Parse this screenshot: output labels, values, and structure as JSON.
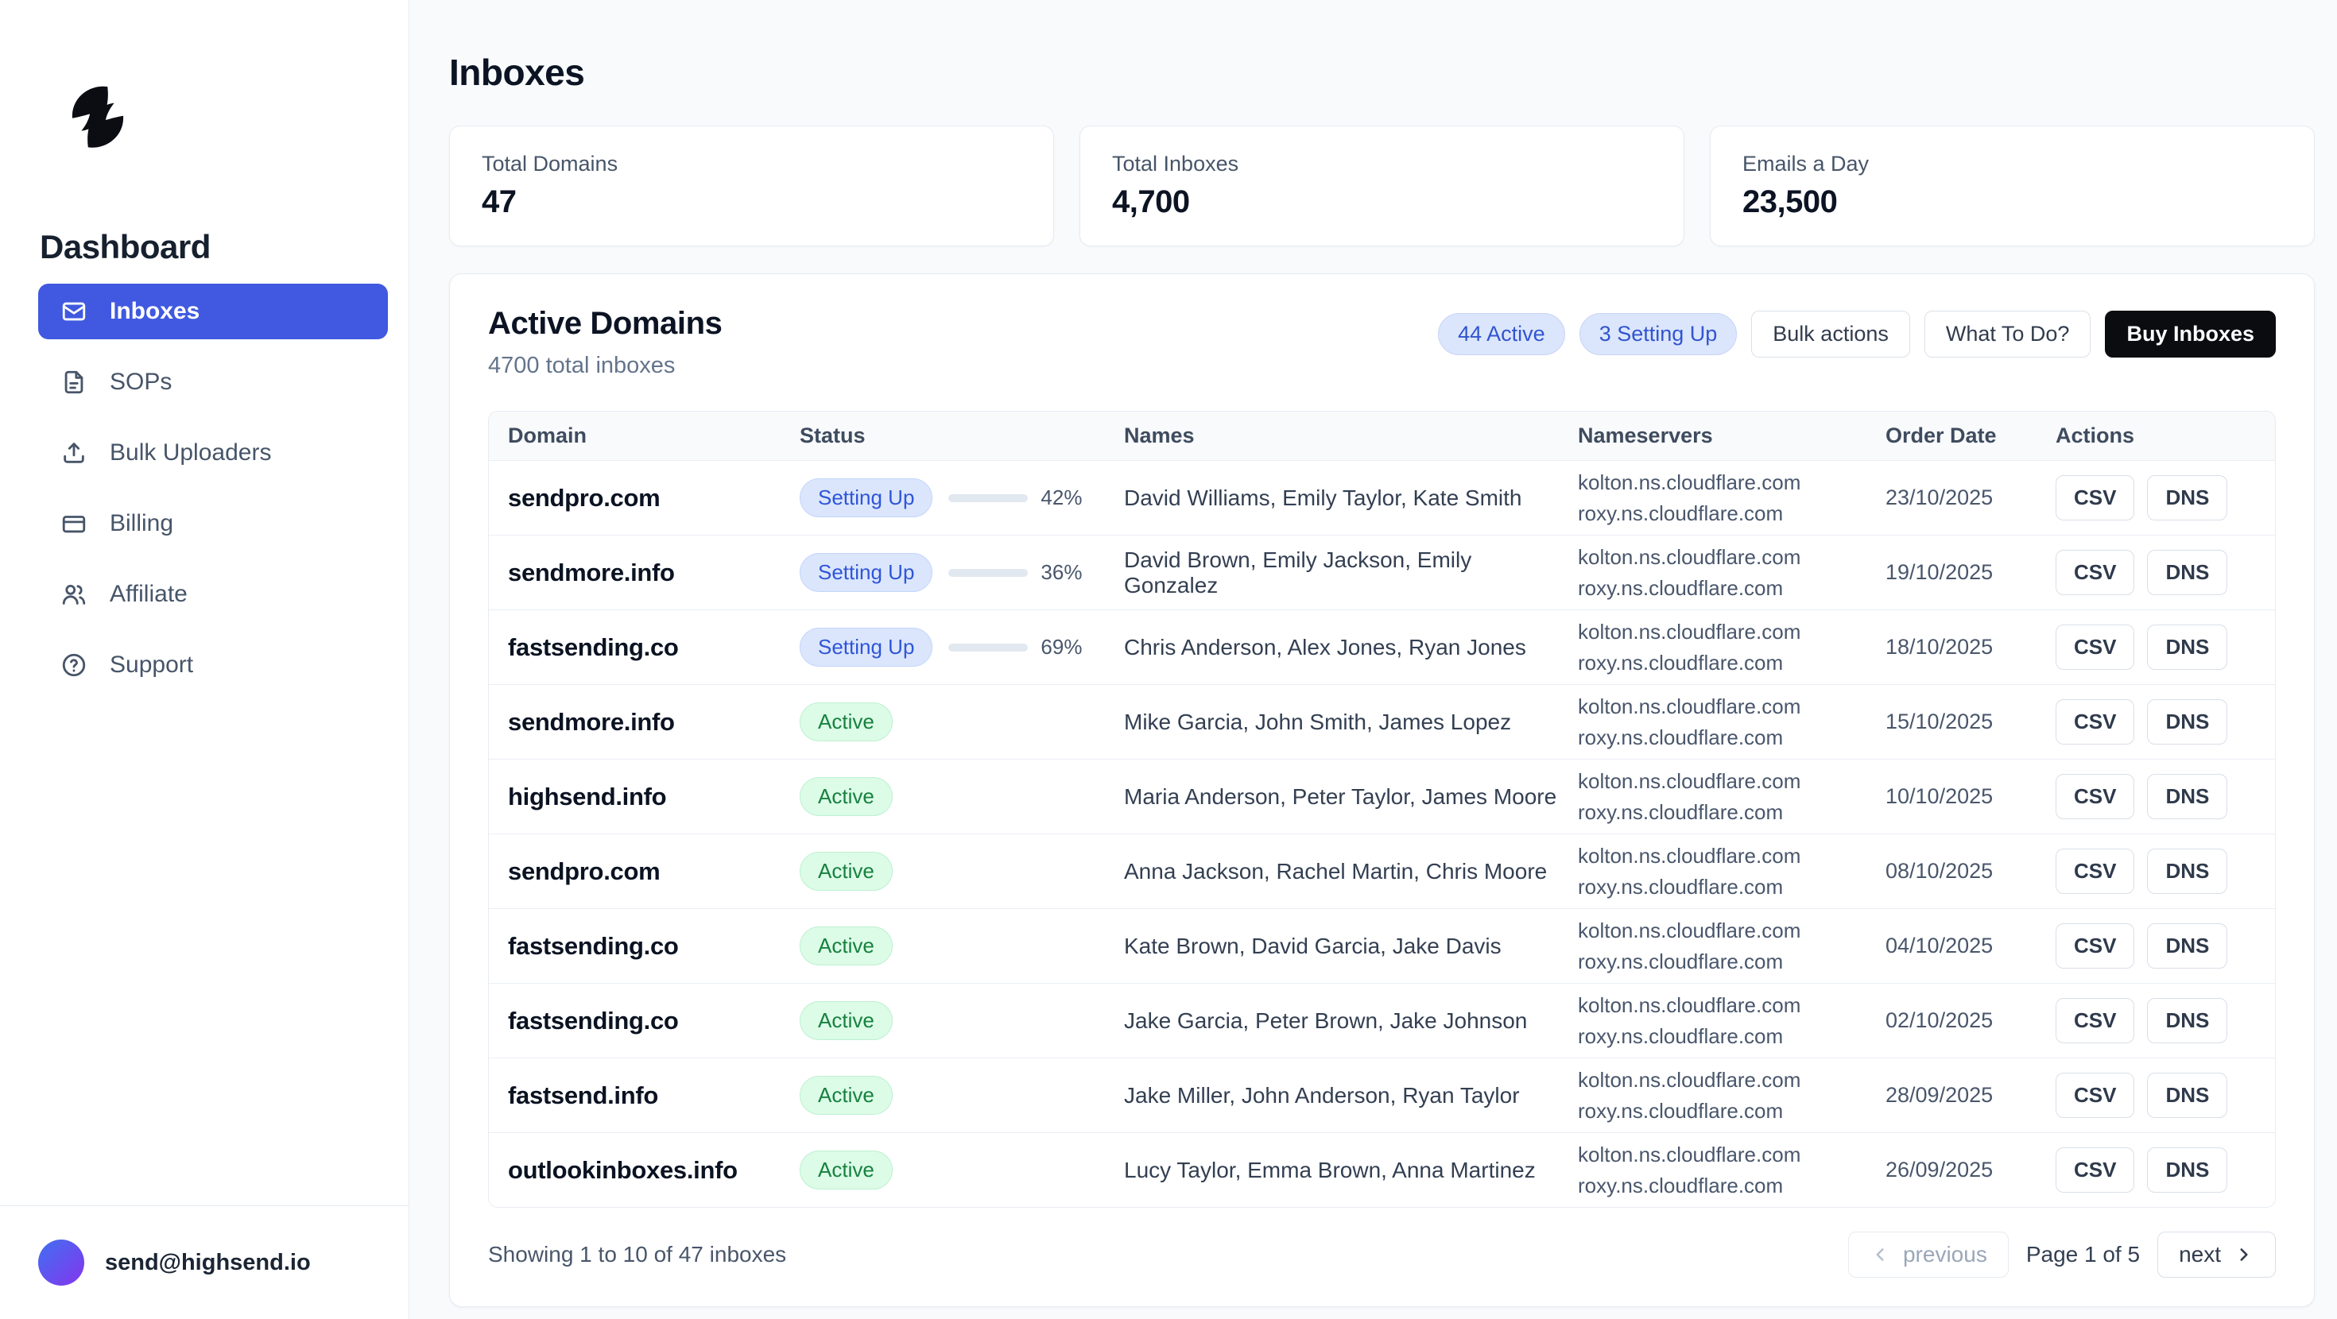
{
  "colors": {
    "accent": "#4059e0",
    "badge_blue_bg": "#dbe6fc",
    "badge_blue_text": "#3254cf",
    "badge_green_bg": "#dcfce7",
    "badge_green_text": "#17813f",
    "dark_button": "#0a0c10"
  },
  "sidebar": {
    "brand": "Dashboard",
    "items": [
      {
        "label": "Inboxes",
        "icon": "mail-icon",
        "active": true
      },
      {
        "label": "SOPs",
        "icon": "file-icon",
        "active": false
      },
      {
        "label": "Bulk Uploaders",
        "icon": "upload-icon",
        "active": false
      },
      {
        "label": "Billing",
        "icon": "credit-card-icon",
        "active": false
      },
      {
        "label": "Affiliate",
        "icon": "users-icon",
        "active": false
      },
      {
        "label": "Support",
        "icon": "help-circle-icon",
        "active": false
      }
    ],
    "user_email": "send@highsend.io"
  },
  "header": {
    "title": "Inboxes"
  },
  "stats": [
    {
      "label": "Total Domains",
      "value": "47"
    },
    {
      "label": "Total Inboxes",
      "value": "4,700"
    },
    {
      "label": "Emails a Day",
      "value": "23,500"
    }
  ],
  "panel": {
    "title": "Active Domains",
    "subtitle": "4700 total inboxes",
    "badges": [
      {
        "label": "44 Active"
      },
      {
        "label": "3 Setting Up"
      }
    ],
    "buttons": {
      "bulk_actions": "Bulk actions",
      "what_to_do": "What To Do?",
      "buy_inboxes": "Buy Inboxes"
    },
    "table": {
      "columns": [
        "Domain",
        "Status",
        "Names",
        "Nameservers",
        "Order Date",
        "Actions"
      ],
      "action_labels": [
        "CSV",
        "DNS"
      ],
      "rows": [
        {
          "domain": "sendpro.com",
          "status": "Setting Up",
          "progress": 42,
          "names": "David Williams, Emily Taylor, Kate Smith",
          "ns": [
            "kolton.ns.cloudflare.com",
            "roxy.ns.cloudflare.com"
          ],
          "date": "23/10/2025"
        },
        {
          "domain": "sendmore.info",
          "status": "Setting Up",
          "progress": 36,
          "names": "David Brown, Emily Jackson, Emily Gonzalez",
          "ns": [
            "kolton.ns.cloudflare.com",
            "roxy.ns.cloudflare.com"
          ],
          "date": "19/10/2025"
        },
        {
          "domain": "fastsending.co",
          "status": "Setting Up",
          "progress": 69,
          "names": "Chris Anderson, Alex Jones, Ryan Jones",
          "ns": [
            "kolton.ns.cloudflare.com",
            "roxy.ns.cloudflare.com"
          ],
          "date": "18/10/2025"
        },
        {
          "domain": "sendmore.info",
          "status": "Active",
          "progress": null,
          "names": "Mike Garcia, John Smith, James Lopez",
          "ns": [
            "kolton.ns.cloudflare.com",
            "roxy.ns.cloudflare.com"
          ],
          "date": "15/10/2025"
        },
        {
          "domain": "highsend.info",
          "status": "Active",
          "progress": null,
          "names": "Maria Anderson, Peter Taylor, James Moore",
          "ns": [
            "kolton.ns.cloudflare.com",
            "roxy.ns.cloudflare.com"
          ],
          "date": "10/10/2025"
        },
        {
          "domain": "sendpro.com",
          "status": "Active",
          "progress": null,
          "names": "Anna Jackson, Rachel Martin, Chris Moore",
          "ns": [
            "kolton.ns.cloudflare.com",
            "roxy.ns.cloudflare.com"
          ],
          "date": "08/10/2025"
        },
        {
          "domain": "fastsending.co",
          "status": "Active",
          "progress": null,
          "names": "Kate Brown, David Garcia, Jake Davis",
          "ns": [
            "kolton.ns.cloudflare.com",
            "roxy.ns.cloudflare.com"
          ],
          "date": "04/10/2025"
        },
        {
          "domain": "fastsending.co",
          "status": "Active",
          "progress": null,
          "names": "Jake Garcia, Peter Brown, Jake Johnson",
          "ns": [
            "kolton.ns.cloudflare.com",
            "roxy.ns.cloudflare.com"
          ],
          "date": "02/10/2025"
        },
        {
          "domain": "fastsend.info",
          "status": "Active",
          "progress": null,
          "names": "Jake Miller, John Anderson, Ryan Taylor",
          "ns": [
            "kolton.ns.cloudflare.com",
            "roxy.ns.cloudflare.com"
          ],
          "date": "28/09/2025"
        },
        {
          "domain": "outlookinboxes.info",
          "status": "Active",
          "progress": null,
          "names": "Lucy Taylor, Emma Brown, Anna Martinez",
          "ns": [
            "kolton.ns.cloudflare.com",
            "roxy.ns.cloudflare.com"
          ],
          "date": "26/09/2025"
        }
      ]
    },
    "footer": {
      "showing": "Showing 1 to 10 of 47 inboxes",
      "prev_label": "previous",
      "page_info": "Page 1 of 5",
      "next_label": "next"
    }
  }
}
